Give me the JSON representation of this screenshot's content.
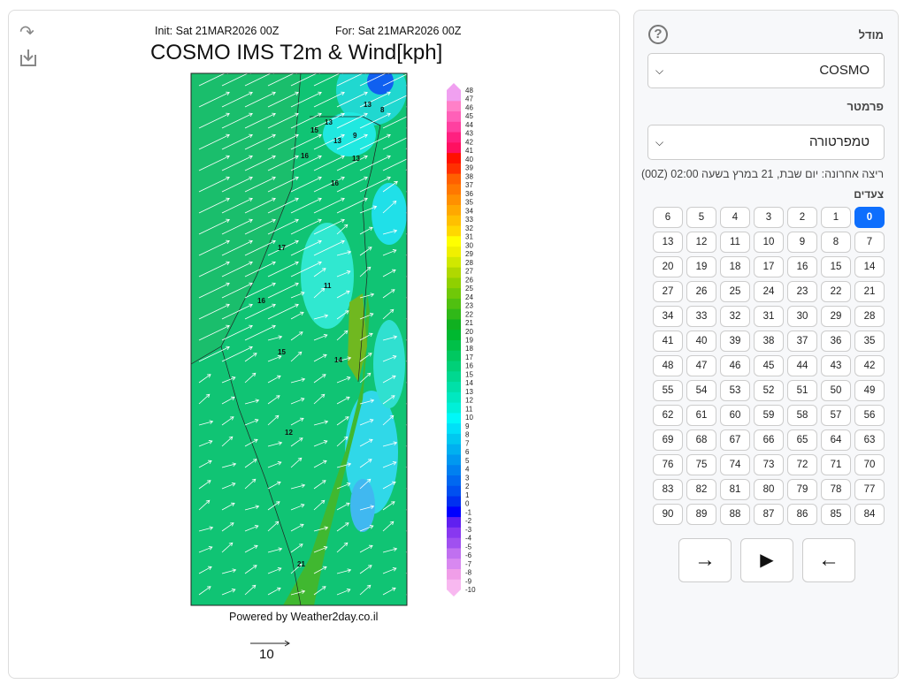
{
  "map_panel": {
    "share_icon": "share-icon",
    "download_icon": "download-icon",
    "init": "Init: Sat 21MAR2026 00Z",
    "for": "For: Sat 21MAR2026 00Z",
    "title": "COSMO IMS T2m & Wind[kph]",
    "powered_by": "Powered by Weather2day.co.il",
    "wind_scale_label": "10",
    "temperature_labels": [
      {
        "t": "13",
        "lx": 414,
        "ly": 117
      },
      {
        "t": "8",
        "lx": 433,
        "ly": 123
      },
      {
        "t": "13",
        "lx": 370,
        "ly": 137
      },
      {
        "t": "15",
        "lx": 354,
        "ly": 146
      },
      {
        "t": "13",
        "lx": 380,
        "ly": 158
      },
      {
        "t": "9",
        "lx": 402,
        "ly": 152
      },
      {
        "t": "13",
        "lx": 401,
        "ly": 178
      },
      {
        "t": "16",
        "lx": 343,
        "ly": 175
      },
      {
        "t": "16",
        "lx": 377,
        "ly": 206
      },
      {
        "t": "17",
        "lx": 317,
        "ly": 279
      },
      {
        "t": "11",
        "lx": 369,
        "ly": 322
      },
      {
        "t": "16",
        "lx": 294,
        "ly": 339
      },
      {
        "t": "15",
        "lx": 317,
        "ly": 397
      },
      {
        "t": "14",
        "lx": 381,
        "ly": 406
      },
      {
        "t": "12",
        "lx": 325,
        "ly": 488
      },
      {
        "t": "21",
        "lx": 339,
        "ly": 637
      }
    ],
    "colorbar": {
      "min": -10,
      "max": 48,
      "colors": [
        "#f8b8f0",
        "#f09ee8",
        "#d888f0",
        "#c070f0",
        "#a050f0",
        "#8838f0",
        "#6020f0",
        "#0000ff",
        "#0030f0",
        "#0050f0",
        "#0068f0",
        "#0080f0",
        "#0098f0",
        "#00b0f0",
        "#00c8f0",
        "#00e0f8",
        "#00f8f8",
        "#00f0d8",
        "#00e8c0",
        "#00e0a8",
        "#00d890",
        "#00d078",
        "#00c860",
        "#00c048",
        "#00b830",
        "#10b020",
        "#30b818",
        "#50c010",
        "#70c808",
        "#90d000",
        "#b0d800",
        "#d0e800",
        "#f0f000",
        "#ffff00",
        "#ffd800",
        "#ffc000",
        "#ffa800",
        "#ff9000",
        "#ff7800",
        "#ff6000",
        "#ff3000",
        "#ff1000",
        "#ff1060",
        "#ff2080",
        "#ff40a0",
        "#ff60b8",
        "#ff80c8",
        "#f0a0f0"
      ]
    }
  },
  "controls": {
    "help_icon": "?",
    "model_label": "מודל",
    "model_value": "COSMO",
    "parameter_label": "פרמטר",
    "parameter_value": "טמפרטורה",
    "last_run": "ריצה אחרונה: יום שבת, 21 במרץ בשעה 02:00 (00Z)",
    "steps_label": "צעדים",
    "steps": [
      "0",
      "1",
      "2",
      "3",
      "4",
      "5",
      "6",
      "7",
      "8",
      "9",
      "10",
      "11",
      "12",
      "13",
      "14",
      "15",
      "16",
      "17",
      "18",
      "19",
      "20",
      "21",
      "22",
      "23",
      "24",
      "25",
      "26",
      "27",
      "28",
      "29",
      "30",
      "31",
      "32",
      "33",
      "34",
      "35",
      "36",
      "37",
      "38",
      "39",
      "40",
      "41",
      "42",
      "43",
      "44",
      "45",
      "46",
      "47",
      "48",
      "49",
      "50",
      "51",
      "52",
      "53",
      "54",
      "55",
      "56",
      "57",
      "58",
      "59",
      "60",
      "61",
      "62",
      "63",
      "64",
      "65",
      "66",
      "67",
      "68",
      "69",
      "70",
      "71",
      "72",
      "73",
      "74",
      "75",
      "76",
      "77",
      "78",
      "79",
      "80",
      "81",
      "82",
      "83",
      "84",
      "85",
      "86",
      "87",
      "88",
      "89",
      "90"
    ],
    "active_step": "0",
    "prev_icon": "←",
    "play_icon": "▶",
    "next_icon": "→"
  }
}
